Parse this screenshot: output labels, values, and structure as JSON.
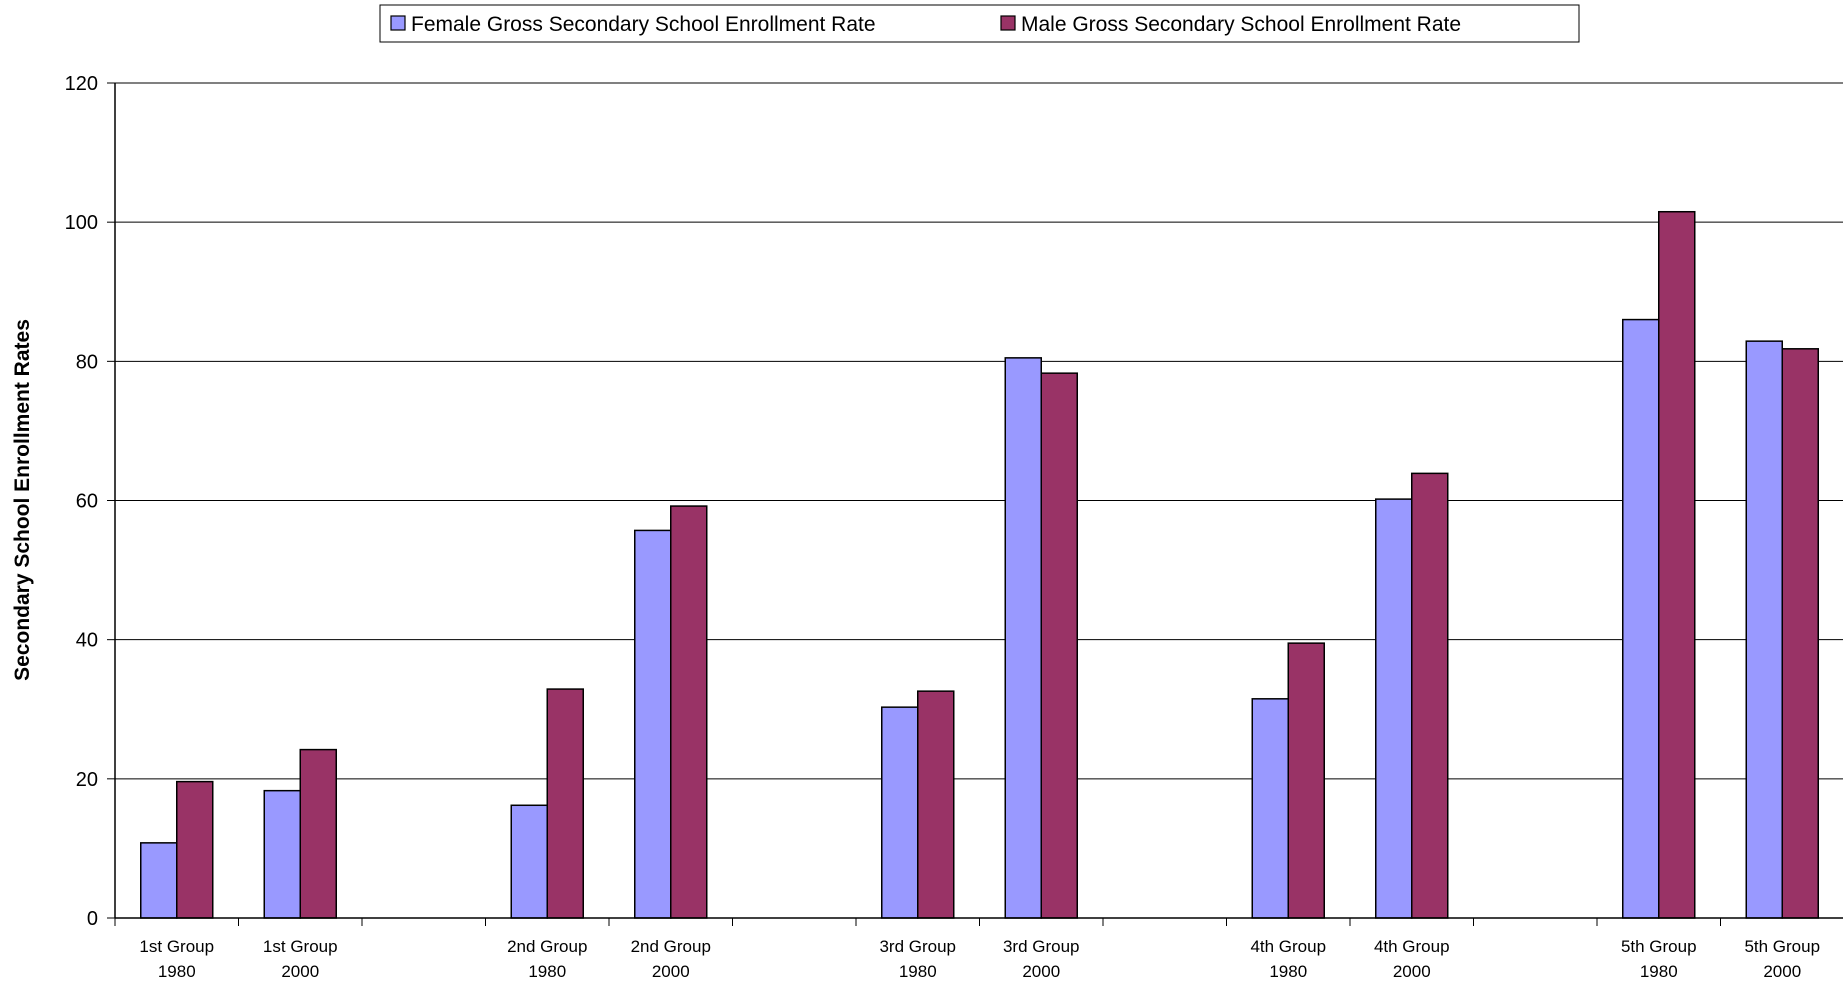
{
  "chart_data": {
    "type": "bar",
    "title": "",
    "xlabel": "",
    "ylabel": "Secondary School Enrollment Rates",
    "ylim": [
      0,
      120
    ],
    "yticks": [
      0,
      20,
      40,
      60,
      80,
      100,
      120
    ],
    "grid": true,
    "legend_position": "top",
    "categories": [
      [
        "1st Group",
        "1980"
      ],
      [
        "1st Group",
        "2000"
      ],
      [
        "",
        ""
      ],
      [
        "2nd Group",
        "1980"
      ],
      [
        "2nd Group",
        "2000"
      ],
      [
        "",
        ""
      ],
      [
        "3rd Group",
        "1980"
      ],
      [
        "3rd Group",
        "2000"
      ],
      [
        "",
        ""
      ],
      [
        "4th Group",
        "1980"
      ],
      [
        "4th Group",
        "2000"
      ],
      [
        "",
        ""
      ],
      [
        "5th Group",
        "1980"
      ],
      [
        "5th Group",
        "2000"
      ]
    ],
    "series": [
      {
        "name": "Female Gross Secondary School Enrollment Rate",
        "color": "#9999ff",
        "values": [
          10.8,
          18.3,
          null,
          16.2,
          55.7,
          null,
          30.3,
          80.5,
          null,
          31.5,
          60.2,
          null,
          86.0,
          82.9
        ]
      },
      {
        "name": "Male Gross Secondary School Enrollment Rate",
        "color": "#993366",
        "values": [
          19.6,
          24.2,
          null,
          32.9,
          59.2,
          null,
          32.6,
          78.3,
          null,
          39.5,
          63.9,
          null,
          101.5,
          81.8
        ]
      }
    ]
  }
}
